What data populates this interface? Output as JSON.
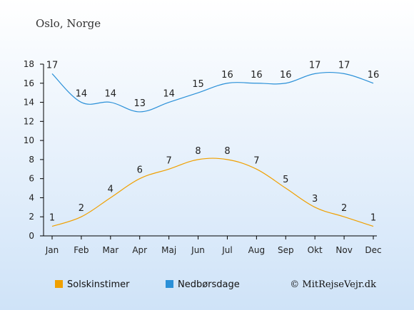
{
  "title": "Oslo, Norge",
  "credit": "© MitRejseVejr.dk",
  "colors": {
    "sun": "#f0a000",
    "rain": "#2a90d8",
    "bg_top": "#ffffff",
    "bg_bottom": "#cfe3f8",
    "axis": "#000000"
  },
  "chart_data": {
    "type": "line",
    "categories": [
      "Jan",
      "Feb",
      "Mar",
      "Apr",
      "Maj",
      "Jun",
      "Jul",
      "Aug",
      "Sep",
      "Okt",
      "Nov",
      "Dec"
    ],
    "ylim": [
      0,
      18
    ],
    "yticks": [
      0,
      2,
      4,
      6,
      8,
      10,
      12,
      14,
      16,
      18
    ],
    "grid": false,
    "legend_position": "bottom",
    "series": [
      {
        "name": "Solskinstimer",
        "color": "#f0a000",
        "values": [
          1,
          2,
          4,
          6,
          7,
          8,
          8,
          7,
          5,
          3,
          2,
          1
        ]
      },
      {
        "name": "Nedbørsdage",
        "color": "#2a90d8",
        "values": [
          17,
          14,
          14,
          13,
          14,
          15,
          16,
          16,
          16,
          17,
          17,
          16
        ]
      }
    ]
  }
}
